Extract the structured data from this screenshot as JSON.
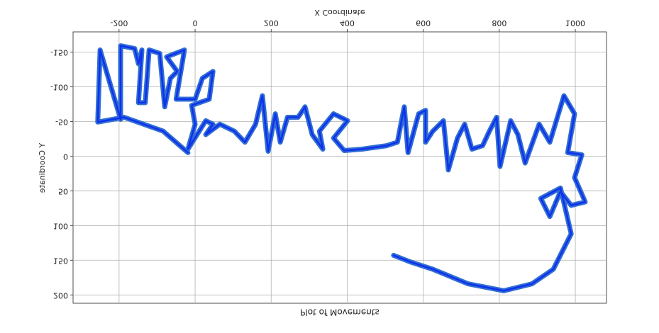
{
  "chart_data": {
    "type": "line",
    "title": "Plot of Movements",
    "x_label": "X Coordinate",
    "y_label": "Y Coordinate",
    "xlim": [
      -321,
      1082
    ],
    "ylim": [
      -179,
      212
    ],
    "xticks": [
      -200,
      0,
      200,
      400,
      600,
      800,
      1000
    ],
    "yticks": [
      -150,
      -100,
      -50,
      0,
      50,
      100,
      150,
      200
    ],
    "grid": true,
    "series": [
      {
        "color": "#1030f0",
        "outline_color": "#2f6fd0",
        "x": [
          -19,
          -84,
          -187,
          -256,
          -250,
          -196,
          -196,
          -159,
          -149,
          -140,
          -149,
          -131,
          -121,
          -93,
          -80,
          -65,
          -47,
          -75,
          -28,
          -50,
          0,
          19,
          47,
          37,
          -9,
          0,
          -19,
          28,
          47,
          28,
          65,
          103,
          131,
          159,
          177,
          192,
          211,
          224,
          243,
          271,
          289,
          308,
          336,
          327,
          364,
          401,
          364,
          392,
          439,
          504,
          532,
          550,
          560,
          588,
          606,
          606,
          625,
          653,
          666,
          690,
          709,
          728,
          756,
          774,
          793,
          802,
          830,
          849,
          868,
          905,
          933,
          970,
          998,
          980,
          1017,
          998,
          1026,
          989,
          961,
          933,
          909,
          961,
          989,
          942,
          886,
          812,
          718,
          625,
          569,
          522
        ],
        "values": [
          -5,
          -36,
          -56,
          -49,
          -153,
          -53,
          -159,
          -155,
          -133,
          -153,
          -77,
          -77,
          -153,
          -148,
          -71,
          -112,
          -122,
          -143,
          -153,
          -82,
          -82,
          -112,
          -122,
          -82,
          -73,
          -46,
          -10,
          -51,
          -46,
          -31,
          -46,
          -36,
          -20,
          -46,
          -87,
          -7,
          -61,
          -20,
          -56,
          -56,
          -71,
          -31,
          -10,
          -36,
          -61,
          -51,
          -26,
          -8,
          -10,
          -15,
          -20,
          -71,
          -5,
          -61,
          -66,
          -20,
          -36,
          -51,
          20,
          -26,
          -46,
          -10,
          -15,
          -36,
          -56,
          15,
          -51,
          -31,
          10,
          -46,
          -20,
          -87,
          -61,
          -5,
          -2,
          31,
          66,
          71,
          51,
          87,
          61,
          46,
          112,
          163,
          184,
          194,
          184,
          163,
          153,
          143
        ]
      }
    ]
  }
}
